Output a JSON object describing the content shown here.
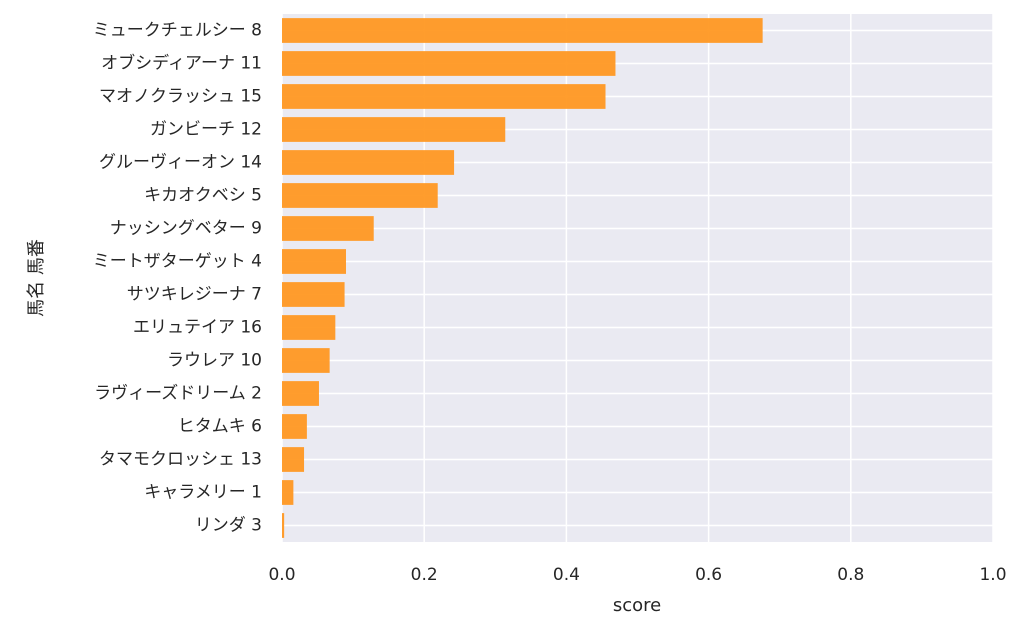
{
  "chart_data": {
    "type": "bar",
    "orientation": "horizontal",
    "categories": [
      "ミュークチェルシー 8",
      "オブシディアーナ 11",
      "マオノクラッシュ 15",
      "ガンビーチ 12",
      "グルーヴィーオン 14",
      "キカオクベシ 5",
      "ナッシングベター 9",
      "ミートザターゲット 4",
      "サツキレジーナ 7",
      "エリュテイア 16",
      "ラウレア 10",
      "ラヴィーズドリーム 2",
      "ヒタムキ 6",
      "タマモクロッシェ 13",
      "キャラメリー 1",
      "リンダ 3"
    ],
    "values": [
      0.676,
      0.469,
      0.455,
      0.314,
      0.242,
      0.219,
      0.129,
      0.09,
      0.088,
      0.075,
      0.067,
      0.052,
      0.035,
      0.031,
      0.016,
      0.003
    ],
    "xlabel": "score",
    "ylabel": "馬名 馬番",
    "xlim": [
      0,
      1.0
    ],
    "xticks": [
      "0.0",
      "0.2",
      "0.4",
      "0.6",
      "0.8",
      "1.0"
    ],
    "grid": true,
    "bar_color": "#ff9822",
    "background_color": "#eaeaf2",
    "grid_color": "#ffffff"
  }
}
